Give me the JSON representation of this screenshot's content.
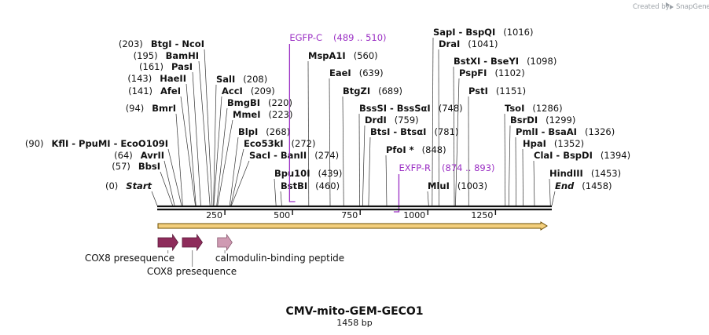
{
  "credit": {
    "text": "Created by",
    "brand": "SnapGene"
  },
  "title": "CMV-mito-GEM-GECO1",
  "length_label": "1458 bp",
  "total_bp": 1458,
  "colors": {
    "backbone": "#111111",
    "orf_fill": "#f3cf7d",
    "orf_stroke": "#6b4c00",
    "primer": "#9b30c4",
    "presequence": "#8e2c5b",
    "peptide": "#cf9ab2"
  },
  "axis": {
    "ticks": [
      250,
      500,
      750,
      1000,
      1250
    ]
  },
  "sites": [
    {
      "label": "Start",
      "italic": true,
      "pos_text": "(0)",
      "bp": 0
    },
    {
      "label": "BbsI",
      "pos_text": "(57)",
      "bp": 57
    },
    {
      "label": "AvrII",
      "pos_text": "(64)",
      "bp": 64
    },
    {
      "label": "KflI  - PpuMI  - EcoO109I",
      "pos_text": "(90)",
      "bp": 90
    },
    {
      "label": "BmrI",
      "pos_text": "(94)",
      "bp": 94
    },
    {
      "label": "AfeI",
      "pos_text": "(141)",
      "bp": 141
    },
    {
      "label": "HaeII",
      "pos_text": "(143)",
      "bp": 143
    },
    {
      "label": "PasI",
      "pos_text": "(161)",
      "bp": 161
    },
    {
      "label": "BamHI",
      "pos_text": "(195)",
      "bp": 195
    },
    {
      "label": "BtgI  - NcoI",
      "pos_text": "(203)",
      "bp": 203
    },
    {
      "label": "SalI",
      "pos_text": "(208)",
      "bp": 208
    },
    {
      "label": "AccI",
      "pos_text": "(209)",
      "bp": 209
    },
    {
      "label": "BmgBI",
      "pos_text": "(220)",
      "bp": 220
    },
    {
      "label": "MmeI",
      "pos_text": "(223)",
      "bp": 223
    },
    {
      "label": "BlpI",
      "pos_text": "(268)",
      "bp": 268
    },
    {
      "label": "Eco53kI",
      "pos_text": "(272)",
      "bp": 272
    },
    {
      "label": "SacI  - BanII",
      "pos_text": "(274)",
      "bp": 274
    },
    {
      "label": "Bpu10I",
      "pos_text": "(439)",
      "bp": 439
    },
    {
      "label": "BstBI",
      "pos_text": "(460)",
      "bp": 460
    },
    {
      "label": "MspA1I",
      "pos_text": "(560)",
      "bp": 560
    },
    {
      "label": "EaeI",
      "pos_text": "(639)",
      "bp": 639
    },
    {
      "label": "BtgZI",
      "pos_text": "(689)",
      "bp": 689
    },
    {
      "label": "BssSI  - BssSαI",
      "pos_text": "(748)",
      "bp": 748
    },
    {
      "label": "DrdI",
      "pos_text": "(759)",
      "bp": 759
    },
    {
      "label": "BtsI  - BtsαI",
      "pos_text": "(781)",
      "bp": 781
    },
    {
      "label": "PfoI *",
      "pos_text": "(848)",
      "bp": 848
    },
    {
      "label": "MluI",
      "pos_text": "(1003)",
      "bp": 1003
    },
    {
      "label": "SapI  - BspQI",
      "pos_text": "(1016)",
      "bp": 1016
    },
    {
      "label": "DraI",
      "pos_text": "(1041)",
      "bp": 1041
    },
    {
      "label": "BstXI  - BseYI",
      "pos_text": "(1098)",
      "bp": 1098
    },
    {
      "label": "PspFI",
      "pos_text": "(1102)",
      "bp": 1102
    },
    {
      "label": "PstI",
      "pos_text": "(1151)",
      "bp": 1151
    },
    {
      "label": "TsoI",
      "pos_text": "(1286)",
      "bp": 1286
    },
    {
      "label": "BsrDI",
      "pos_text": "(1299)",
      "bp": 1299
    },
    {
      "label": "PmlI  - BsaAI",
      "pos_text": "(1326)",
      "bp": 1326
    },
    {
      "label": "HpaI",
      "pos_text": "(1352)",
      "bp": 1352
    },
    {
      "label": "ClaI  - BspDI",
      "pos_text": "(1394)",
      "bp": 1394
    },
    {
      "label": "HindIII",
      "pos_text": "(1453)",
      "bp": 1453
    },
    {
      "label": "End",
      "italic": true,
      "pos_text": "(1458)",
      "bp": 1458
    }
  ],
  "primers": [
    {
      "label": "EGFP-C",
      "range_text": "(489 .. 510)",
      "start": 489,
      "end": 510,
      "direction": "forward"
    },
    {
      "label": "EXFP-R",
      "range_text": "(874 .. 893)",
      "start": 874,
      "end": 893,
      "direction": "reverse"
    }
  ],
  "features": [
    {
      "label": "COX8 presequence",
      "start": 0,
      "end": 77,
      "kind": "presequence"
    },
    {
      "label": "COX8 presequence",
      "start": 90,
      "end": 167,
      "kind": "presequence"
    },
    {
      "label": "calmodulin-binding peptide",
      "start": 220,
      "end": 277,
      "kind": "peptide"
    }
  ],
  "orf": {
    "start": 0,
    "end": 1458
  }
}
